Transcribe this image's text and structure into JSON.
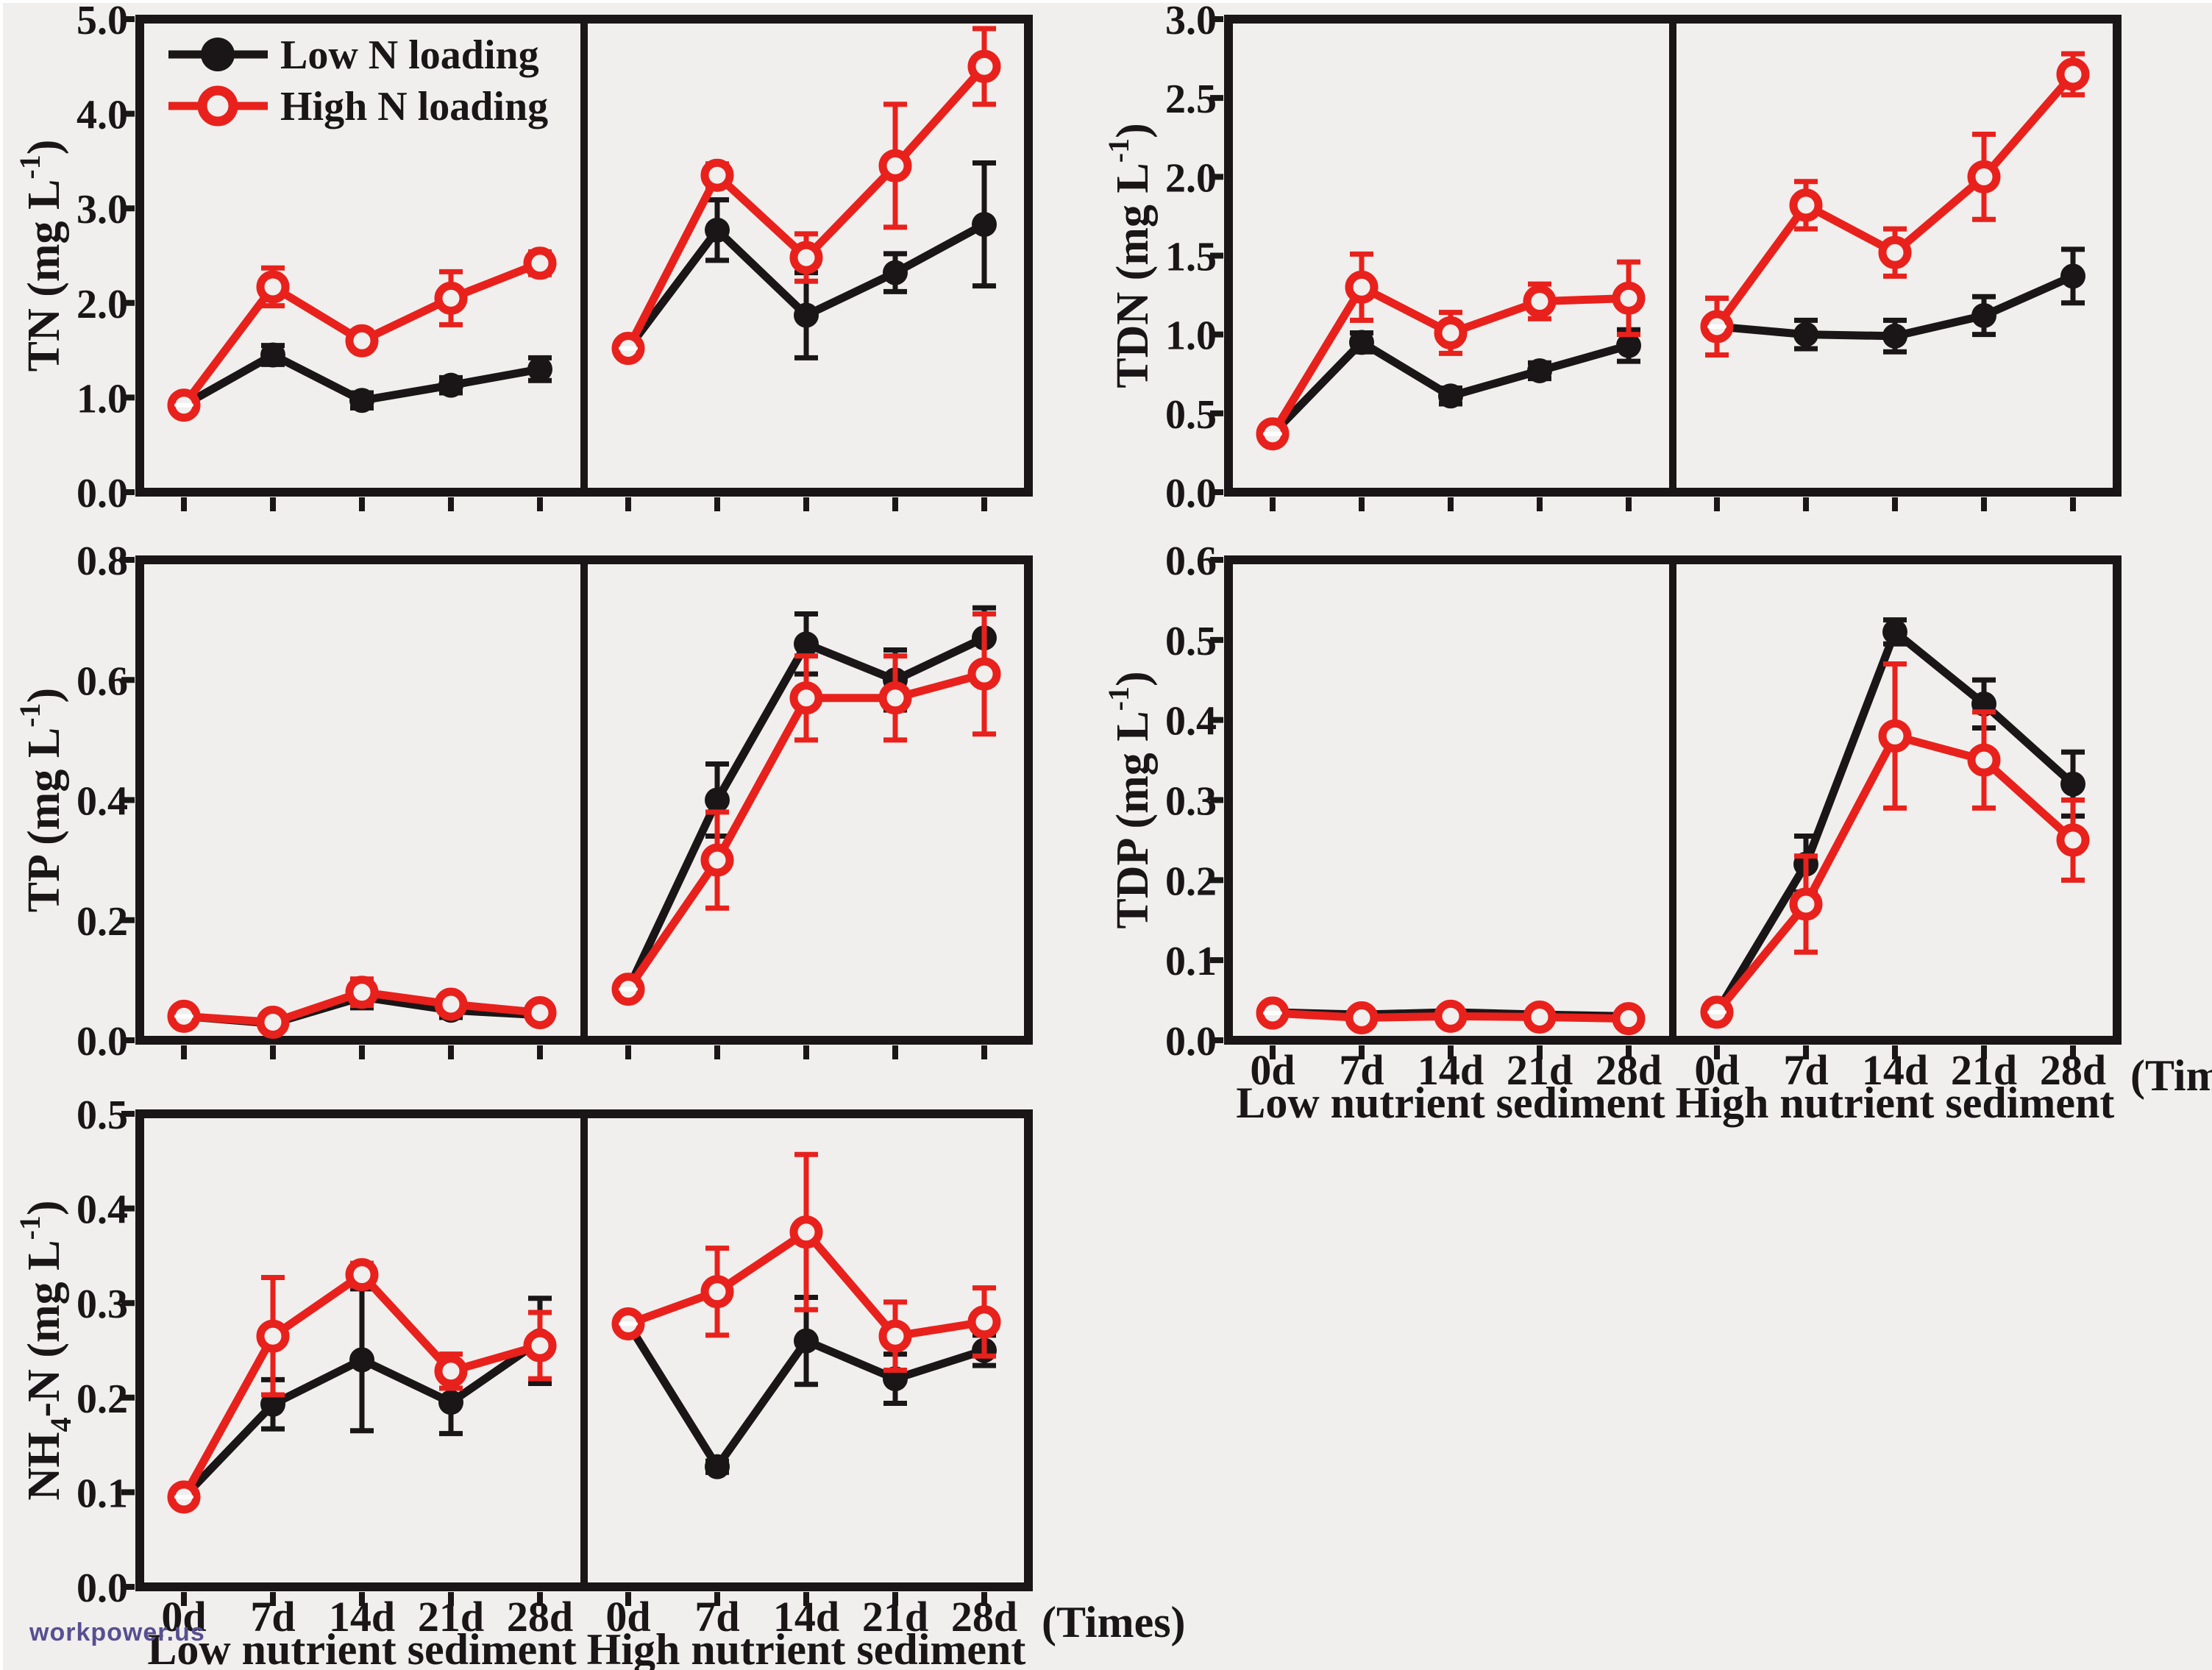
{
  "figure": {
    "background": "#f0efed",
    "watermark": "workpower.us",
    "watermark_color": "#584f91",
    "times_label": "(Times)",
    "colors": {
      "black": "#1a1617",
      "red": "#e8211c"
    },
    "legend": {
      "position": "top-left",
      "entries": [
        {
          "label": "Low N loading",
          "color": "black",
          "marker": "filled"
        },
        {
          "label": "High N loading",
          "color": "red",
          "marker": "open"
        }
      ]
    }
  },
  "chart_data": [
    {
      "id": "tn",
      "type": "line",
      "ylabel": [
        {
          "t": "TN (mg L"
        },
        {
          "t": "-1",
          "sup": true
        },
        {
          "t": ")"
        }
      ],
      "ylim": [
        0,
        5
      ],
      "ytick_step": 1.0,
      "categories": [
        "0d",
        "7d",
        "14d",
        "21d",
        "28d"
      ],
      "grid": false,
      "show_x_labels": false,
      "show_legend": true,
      "show_sediment_labels": false,
      "show_times": false,
      "subpanels": [
        {
          "label": "Low nutrient sediment",
          "series": [
            {
              "name": "Low N loading",
              "color": "black",
              "marker": "filled",
              "values": [
                0.92,
                1.45,
                0.97,
                1.13,
                1.3
              ],
              "errors": [
                0.06,
                0.1,
                0.08,
                0.08,
                0.12
              ]
            },
            {
              "name": "High N loading",
              "color": "red",
              "marker": "open",
              "values": [
                0.92,
                2.17,
                1.6,
                2.05,
                2.42
              ],
              "errors": [
                0.06,
                0.2,
                0.1,
                0.28,
                0.12
              ]
            }
          ]
        },
        {
          "label": "High nutrient sediment",
          "series": [
            {
              "name": "Low N loading",
              "color": "black",
              "marker": "filled",
              "values": [
                1.52,
                2.77,
                1.87,
                2.32,
                2.83
              ],
              "errors": [
                0.05,
                0.32,
                0.45,
                0.2,
                0.65
              ]
            },
            {
              "name": "High N loading",
              "color": "red",
              "marker": "open",
              "values": [
                1.52,
                3.35,
                2.48,
                3.45,
                4.5
              ],
              "errors": [
                0.05,
                0.12,
                0.25,
                0.65,
                0.4
              ]
            }
          ]
        }
      ]
    },
    {
      "id": "tdn",
      "type": "line",
      "ylabel": [
        {
          "t": "TDN (mg L"
        },
        {
          "t": "-1",
          "sup": true
        },
        {
          "t": ")"
        }
      ],
      "ylim": [
        0,
        3
      ],
      "ytick_step": 0.5,
      "categories": [
        "0d",
        "7d",
        "14d",
        "21d",
        "28d"
      ],
      "grid": false,
      "show_x_labels": false,
      "show_legend": false,
      "show_sediment_labels": false,
      "show_times": false,
      "subpanels": [
        {
          "label": "Low nutrient sediment",
          "series": [
            {
              "name": "Low N loading",
              "color": "black",
              "marker": "filled",
              "values": [
                0.37,
                0.95,
                0.61,
                0.77,
                0.93
              ],
              "errors": [
                0.02,
                0.06,
                0.05,
                0.05,
                0.1
              ]
            },
            {
              "name": "High N loading",
              "color": "red",
              "marker": "open",
              "values": [
                0.37,
                1.3,
                1.01,
                1.21,
                1.23
              ],
              "errors": [
                0.03,
                0.21,
                0.13,
                0.11,
                0.23
              ]
            }
          ]
        },
        {
          "label": "High nutrient sediment",
          "series": [
            {
              "name": "Low N loading",
              "color": "black",
              "marker": "filled",
              "values": [
                1.05,
                1.0,
                0.99,
                1.12,
                1.37
              ],
              "errors": [
                0.18,
                0.09,
                0.1,
                0.12,
                0.17
              ]
            },
            {
              "name": "High N loading",
              "color": "red",
              "marker": "open",
              "values": [
                1.05,
                1.82,
                1.52,
                2.0,
                2.65
              ],
              "errors": [
                0.18,
                0.15,
                0.15,
                0.27,
                0.13
              ]
            }
          ]
        }
      ]
    },
    {
      "id": "tp",
      "type": "line",
      "ylabel": [
        {
          "t": "TP (mg L"
        },
        {
          "t": "-1",
          "sup": true
        },
        {
          "t": ")"
        }
      ],
      "ylim": [
        0,
        0.8
      ],
      "ytick_step": 0.2,
      "categories": [
        "0d",
        "7d",
        "14d",
        "21d",
        "28d"
      ],
      "grid": false,
      "show_x_labels": false,
      "show_legend": false,
      "show_sediment_labels": false,
      "show_times": false,
      "subpanels": [
        {
          "label": "Low nutrient sediment",
          "series": [
            {
              "name": "Low N loading",
              "color": "black",
              "marker": "filled",
              "values": [
                0.04,
                0.028,
                0.072,
                0.05,
                0.042
              ],
              "errors": [
                0.008,
                0.008,
                0.018,
                0.012,
                0.008
              ]
            },
            {
              "name": "High N loading",
              "color": "red",
              "marker": "open",
              "values": [
                0.04,
                0.03,
                0.08,
                0.06,
                0.046
              ],
              "errors": [
                0.01,
                0.01,
                0.022,
                0.012,
                0.01
              ]
            }
          ]
        },
        {
          "label": "High nutrient sediment",
          "series": [
            {
              "name": "Low N loading",
              "color": "black",
              "marker": "filled",
              "values": [
                0.085,
                0.4,
                0.66,
                0.6,
                0.67
              ],
              "errors": [
                0.008,
                0.06,
                0.05,
                0.05,
                0.05
              ]
            },
            {
              "name": "High N loading",
              "color": "red",
              "marker": "open",
              "values": [
                0.085,
                0.3,
                0.57,
                0.57,
                0.61
              ],
              "errors": [
                0.008,
                0.08,
                0.07,
                0.07,
                0.1
              ]
            }
          ]
        }
      ]
    },
    {
      "id": "tdp",
      "type": "line",
      "ylabel": [
        {
          "t": "TDP (mg L"
        },
        {
          "t": "-1",
          "sup": true
        },
        {
          "t": ")"
        }
      ],
      "ylim": [
        0,
        0.6
      ],
      "ytick_step": 0.1,
      "categories": [
        "0d",
        "7d",
        "14d",
        "21d",
        "28d"
      ],
      "grid": false,
      "show_x_labels": true,
      "show_legend": false,
      "show_sediment_labels": true,
      "show_times": true,
      "subpanels": [
        {
          "label": "Low nutrient sediment",
          "series": [
            {
              "name": "Low N loading",
              "color": "black",
              "marker": "filled",
              "values": [
                0.035,
                0.032,
                0.035,
                0.032,
                0.03
              ],
              "errors": [
                0.005,
                0.005,
                0.006,
                0.005,
                0.005
              ]
            },
            {
              "name": "High N loading",
              "color": "red",
              "marker": "open",
              "values": [
                0.034,
                0.028,
                0.03,
                0.029,
                0.027
              ],
              "errors": [
                0.005,
                0.005,
                0.005,
                0.005,
                0.005
              ]
            }
          ]
        },
        {
          "label": "High nutrient sediment",
          "series": [
            {
              "name": "Low N loading",
              "color": "black",
              "marker": "filled",
              "values": [
                0.035,
                0.22,
                0.51,
                0.42,
                0.32
              ],
              "errors": [
                0.005,
                0.035,
                0.015,
                0.03,
                0.04
              ]
            },
            {
              "name": "High N loading",
              "color": "red",
              "marker": "open",
              "values": [
                0.035,
                0.17,
                0.38,
                0.35,
                0.25
              ],
              "errors": [
                0.005,
                0.06,
                0.09,
                0.06,
                0.05
              ]
            }
          ]
        }
      ]
    },
    {
      "id": "nh4",
      "type": "line",
      "ylabel": [
        {
          "t": "NH"
        },
        {
          "t": "4",
          "sub": true
        },
        {
          "t": "-N (mg L"
        },
        {
          "t": "-1",
          "sup": true
        },
        {
          "t": ")"
        }
      ],
      "ylim": [
        0,
        0.5
      ],
      "ytick_step": 0.1,
      "categories": [
        "0d",
        "7d",
        "14d",
        "21d",
        "28d"
      ],
      "grid": false,
      "show_x_labels": true,
      "show_legend": false,
      "show_sediment_labels": true,
      "show_times": true,
      "subpanels": [
        {
          "label": "Low nutrient sediment",
          "series": [
            {
              "name": "Low N loading",
              "color": "black",
              "marker": "filled",
              "values": [
                0.095,
                0.193,
                0.24,
                0.195,
                0.26
              ],
              "errors": [
                0.008,
                0.026,
                0.075,
                0.033,
                0.045
              ]
            },
            {
              "name": "High N loading",
              "color": "red",
              "marker": "open",
              "values": [
                0.095,
                0.265,
                0.33,
                0.228,
                0.255
              ],
              "errors": [
                0.008,
                0.062,
                0.012,
                0.018,
                0.035
              ]
            }
          ]
        },
        {
          "label": "High nutrient sediment",
          "series": [
            {
              "name": "Low N loading",
              "color": "black",
              "marker": "filled",
              "values": [
                0.278,
                0.127,
                0.26,
                0.22,
                0.25
              ],
              "errors": [
                0.006,
                0.006,
                0.046,
                0.026,
                0.016
              ]
            },
            {
              "name": "High N loading",
              "color": "red",
              "marker": "open",
              "values": [
                0.278,
                0.312,
                0.375,
                0.265,
                0.28
              ],
              "errors": [
                0.008,
                0.046,
                0.082,
                0.036,
                0.036
              ]
            }
          ]
        }
      ]
    }
  ]
}
